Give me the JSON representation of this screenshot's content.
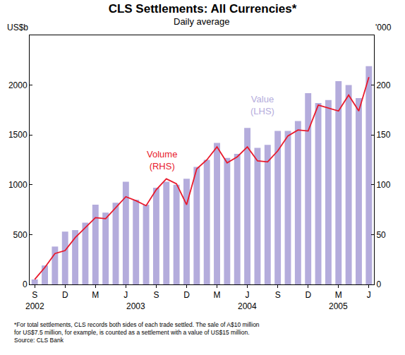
{
  "chart_data": {
    "type": "bar",
    "title": "CLS Settlements: All Currencies*",
    "subtitle": "Daily average",
    "ylabel": "US$b",
    "y2label": "'000",
    "categories": [
      "S",
      null,
      null,
      "D",
      null,
      null,
      "M",
      null,
      null,
      "J",
      null,
      null,
      "S",
      null,
      null,
      "D",
      null,
      null,
      "M",
      null,
      null,
      "J",
      null,
      null,
      "S",
      null,
      null,
      "D",
      null,
      null,
      "M",
      null,
      null,
      "J"
    ],
    "series": [
      {
        "name": "Value (LHS)",
        "type": "bar",
        "color": "#b4acdc",
        "values": [
          50,
          190,
          380,
          530,
          545,
          620,
          800,
          720,
          820,
          1030,
          850,
          800,
          970,
          1030,
          1000,
          1060,
          1180,
          1250,
          1420,
          1270,
          1310,
          1570,
          1370,
          1400,
          1540,
          1540,
          1640,
          1920,
          1820,
          1850,
          2040,
          2000,
          1870,
          2190
        ]
      },
      {
        "name": "Volume (RHS)",
        "type": "line",
        "axis": "y2",
        "color": "#e8192c",
        "values": [
          5,
          17,
          31,
          34,
          47,
          57,
          67,
          66,
          77,
          88,
          84,
          79,
          95,
          106,
          101,
          80,
          116,
          125,
          138,
          122,
          128,
          138,
          124,
          123,
          134,
          149,
          155,
          154,
          180,
          177,
          174,
          190,
          174,
          208
        ]
      }
    ],
    "ylim": [
      0,
      2500
    ],
    "yticks": [
      0,
      500,
      1000,
      1500,
      2000
    ],
    "y2lim": [
      0,
      250
    ],
    "y2ticks": [
      0,
      50,
      100,
      150,
      200
    ],
    "grid": false,
    "annotations": [
      {
        "text": "2002",
        "x": 0
      },
      {
        "text": "2003",
        "x": 10
      },
      {
        "text": "2004",
        "x": 21
      },
      {
        "text": "2005",
        "x": 30
      }
    ],
    "footnote": [
      "*For total settlements, CLS records both sides of each trade settled. The sale of A$10 million",
      "for US$7.5 million, for example, is counted as a settlement with a value of US$15 million.",
      "Source: CLS Bank"
    ]
  }
}
